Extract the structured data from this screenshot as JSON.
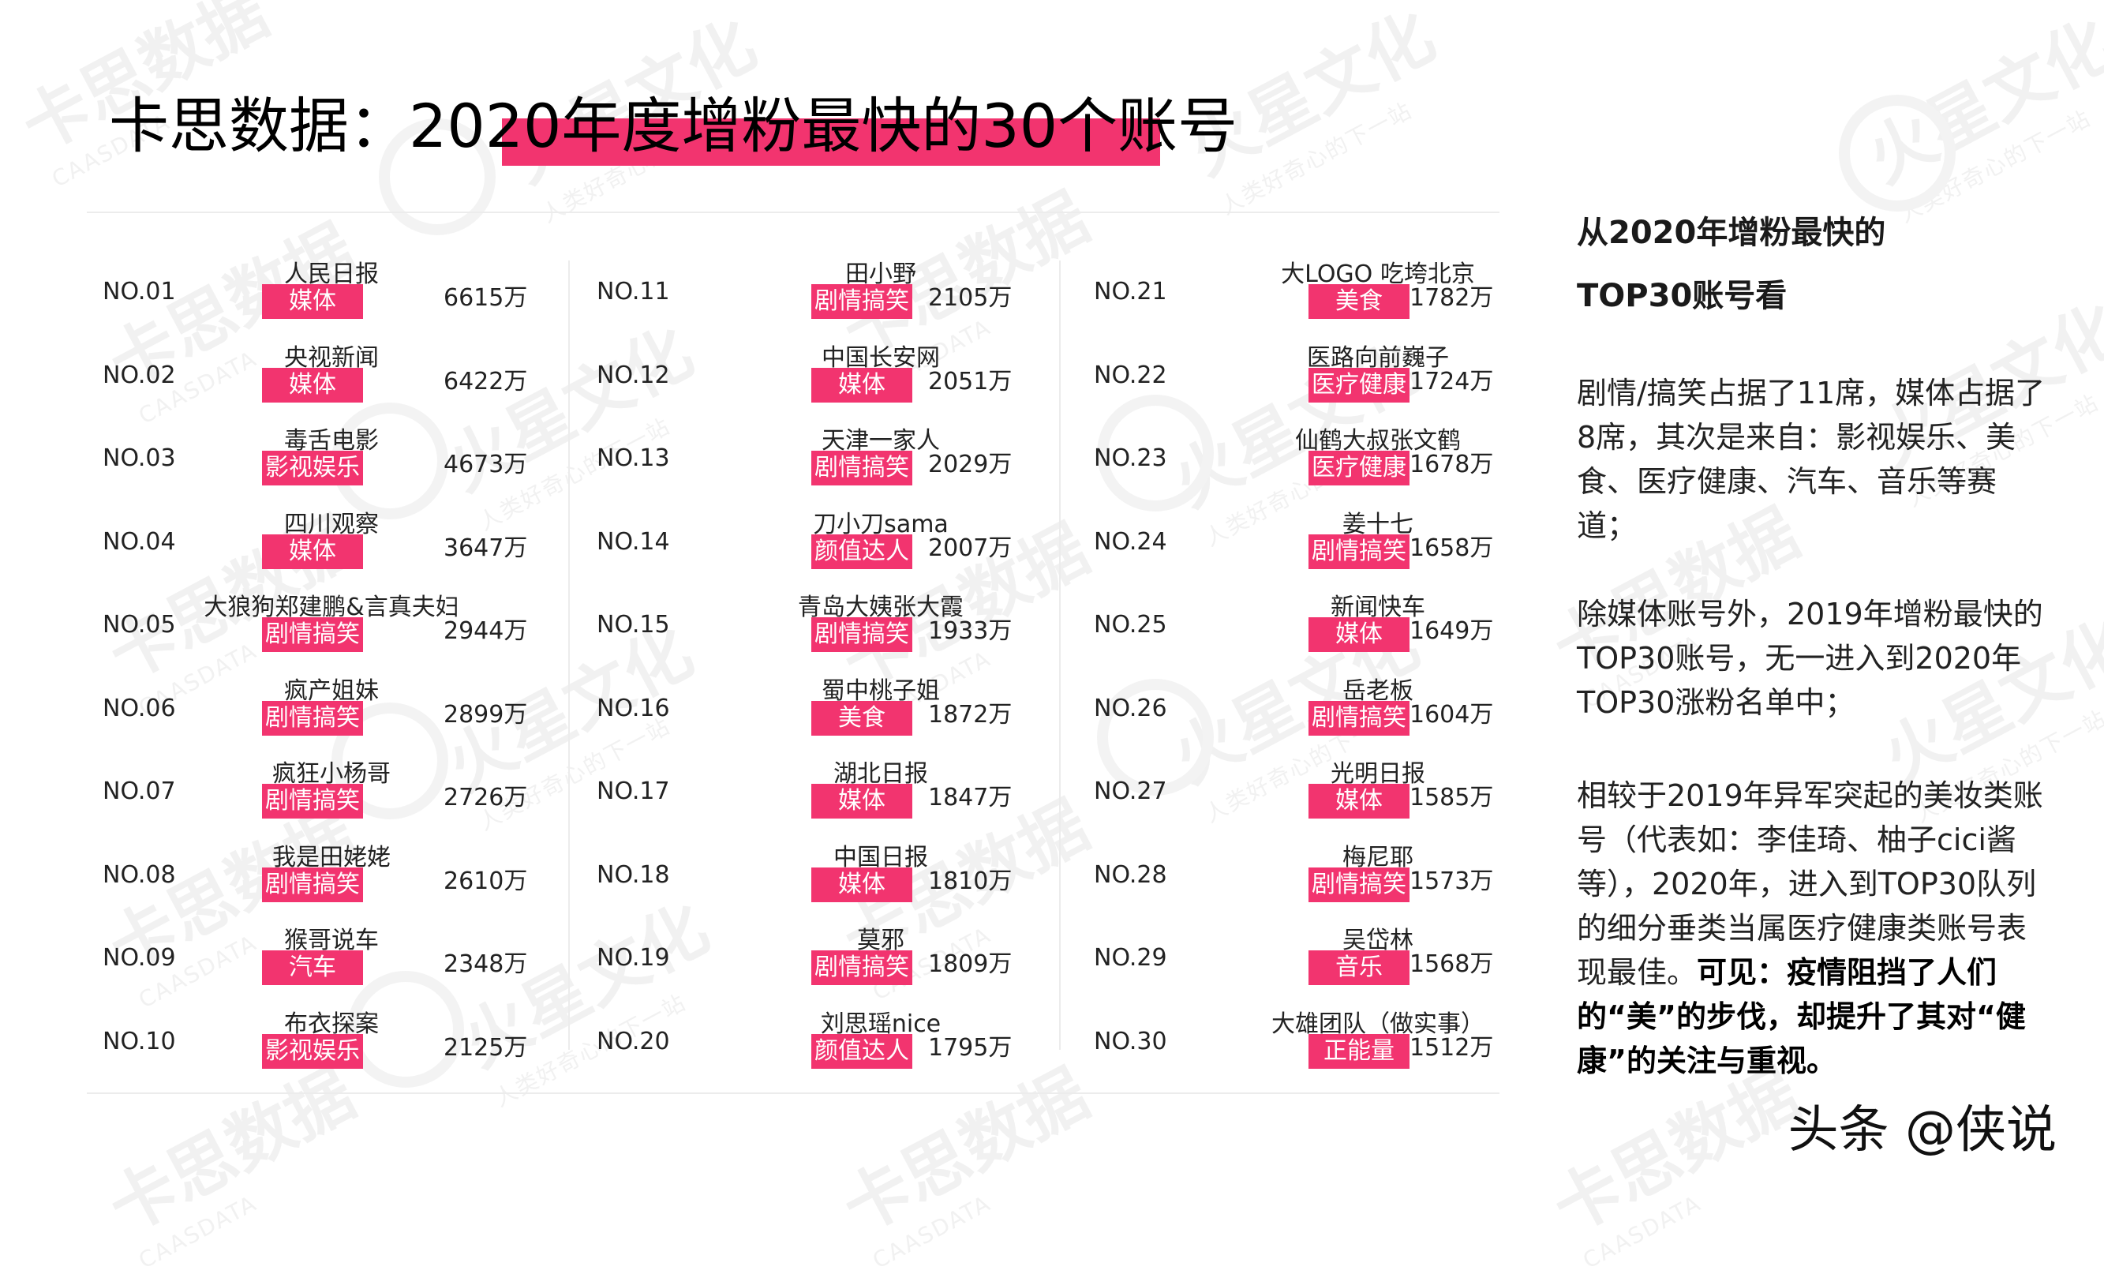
{
  "page": {
    "title": "卡思数据：2020年度增粉最快的30个账号",
    "accent_color": "#f2346f"
  },
  "watermark": {
    "logo_text": "卡思数据",
    "logo_sub": "CAASDATA",
    "brand_text": "火星文化",
    "brand_sub": "人类好奇心的下一站"
  },
  "accounts": [
    {
      "rank": "NO.01",
      "name": "人民日报",
      "category": "媒体",
      "fans": "6615万"
    },
    {
      "rank": "NO.02",
      "name": "央视新闻",
      "category": "媒体",
      "fans": "6422万"
    },
    {
      "rank": "NO.03",
      "name": "毒舌电影",
      "category": "影视娱乐",
      "fans": "4673万"
    },
    {
      "rank": "NO.04",
      "name": "四川观察",
      "category": "媒体",
      "fans": "3647万"
    },
    {
      "rank": "NO.05",
      "name": "大狼狗郑建鹏&言真夫妇",
      "category": "剧情搞笑",
      "fans": "2944万"
    },
    {
      "rank": "NO.06",
      "name": "疯产姐妹",
      "category": "剧情搞笑",
      "fans": "2899万"
    },
    {
      "rank": "NO.07",
      "name": "疯狂小杨哥",
      "category": "剧情搞笑",
      "fans": "2726万"
    },
    {
      "rank": "NO.08",
      "name": "我是田姥姥",
      "category": "剧情搞笑",
      "fans": "2610万"
    },
    {
      "rank": "NO.09",
      "name": "猴哥说车",
      "category": "汽车",
      "fans": "2348万"
    },
    {
      "rank": "NO.10",
      "name": "布衣探案",
      "category": "影视娱乐",
      "fans": "2125万"
    },
    {
      "rank": "NO.11",
      "name": "田小野",
      "category": "剧情搞笑",
      "fans": "2105万"
    },
    {
      "rank": "NO.12",
      "name": "中国长安网",
      "category": "媒体",
      "fans": "2051万"
    },
    {
      "rank": "NO.13",
      "name": "天津一家人",
      "category": "剧情搞笑",
      "fans": "2029万"
    },
    {
      "rank": "NO.14",
      "name": "刀小刀sama",
      "category": "颜值达人",
      "fans": "2007万"
    },
    {
      "rank": "NO.15",
      "name": "青岛大姨张大霞",
      "category": "剧情搞笑",
      "fans": "1933万"
    },
    {
      "rank": "NO.16",
      "name": "蜀中桃子姐",
      "category": "美食",
      "fans": "1872万"
    },
    {
      "rank": "NO.17",
      "name": "湖北日报",
      "category": "媒体",
      "fans": "1847万"
    },
    {
      "rank": "NO.18",
      "name": "中国日报",
      "category": "媒体",
      "fans": "1810万"
    },
    {
      "rank": "NO.19",
      "name": "莫邪",
      "category": "剧情搞笑",
      "fans": "1809万"
    },
    {
      "rank": "NO.20",
      "name": "刘思瑶nice",
      "category": "颜值达人",
      "fans": "1795万"
    },
    {
      "rank": "NO.21",
      "name": "大LOGO 吃垮北京",
      "category": "美食",
      "fans": "1782万"
    },
    {
      "rank": "NO.22",
      "name": "医路向前巍子",
      "category": "医疗健康",
      "fans": "1724万"
    },
    {
      "rank": "NO.23",
      "name": "仙鹤大叔张文鹤",
      "category": "医疗健康",
      "fans": "1678万"
    },
    {
      "rank": "NO.24",
      "name": "姜十七",
      "category": "剧情搞笑",
      "fans": "1658万"
    },
    {
      "rank": "NO.25",
      "name": "新闻快车",
      "category": "媒体",
      "fans": "1649万"
    },
    {
      "rank": "NO.26",
      "name": "岳老板",
      "category": "剧情搞笑",
      "fans": "1604万"
    },
    {
      "rank": "NO.27",
      "name": "光明日报",
      "category": "媒体",
      "fans": "1585万"
    },
    {
      "rank": "NO.28",
      "name": "梅尼耶",
      "category": "剧情搞笑",
      "fans": "1573万"
    },
    {
      "rank": "NO.29",
      "name": "吴岱林",
      "category": "音乐",
      "fans": "1568万"
    },
    {
      "rank": "NO.30",
      "name": "大雄团队（做实事）",
      "category": "正能量",
      "fans": "1512万"
    }
  ],
  "sidebar": {
    "heading_line1": "从2020年增粉最快的",
    "heading_line2": "TOP30账号看",
    "para1": "剧情/搞笑占据了11席，媒体占据了8席，其次是来自：影视娱乐、美食、医疗健康、汽车、音乐等赛道；",
    "para2": "除媒体账号外，2019年增粉最快的TOP30账号，无一进入到2020年TOP30涨粉名单中；",
    "para3_plain": "相较于2019年异军突起的美妆类账号（代表如：李佳琦、柚子cici酱等），2020年，进入到TOP30队列的细分垂类当属医疗健康类账号表现最佳。",
    "para3_bold": "可见：疫情阻挡了人们的“美”的步伐，却提升了其对“健康”的关注与重视。"
  },
  "footer": {
    "credit": "头条 @侠说"
  }
}
